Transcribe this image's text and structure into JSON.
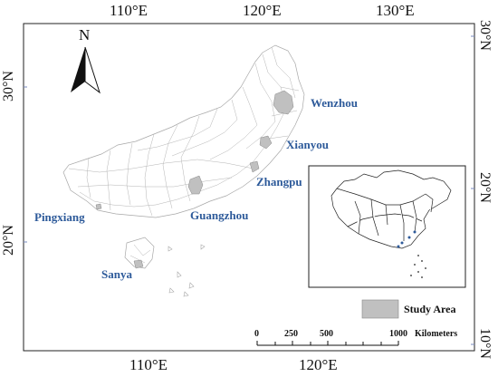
{
  "axes": {
    "top": [
      "110°E",
      "120°E",
      "130°E"
    ],
    "bottom": [
      "110°E",
      "120°E"
    ],
    "left": [
      "30°N",
      "20°N"
    ],
    "right": [
      "30°N",
      "20°N",
      "10°N"
    ]
  },
  "north_arrow": {
    "label": "N"
  },
  "sites": [
    {
      "name": "Wenzhou"
    },
    {
      "name": "Xianyou"
    },
    {
      "name": "Zhangpu"
    },
    {
      "name": "Guangzhou"
    },
    {
      "name": "Pingxiang"
    },
    {
      "name": "Sanya"
    }
  ],
  "legend": {
    "label": "Study Area",
    "swatch_color": "#c0c0c0"
  },
  "scale_bar": {
    "ticks": [
      "0",
      "250",
      "500",
      "1000"
    ],
    "unit": "Kilometers"
  },
  "colors": {
    "label_blue": "#2d5a9a",
    "boundary_gray": "#a8a8a8",
    "study_area_gray": "#c0c0c0"
  }
}
